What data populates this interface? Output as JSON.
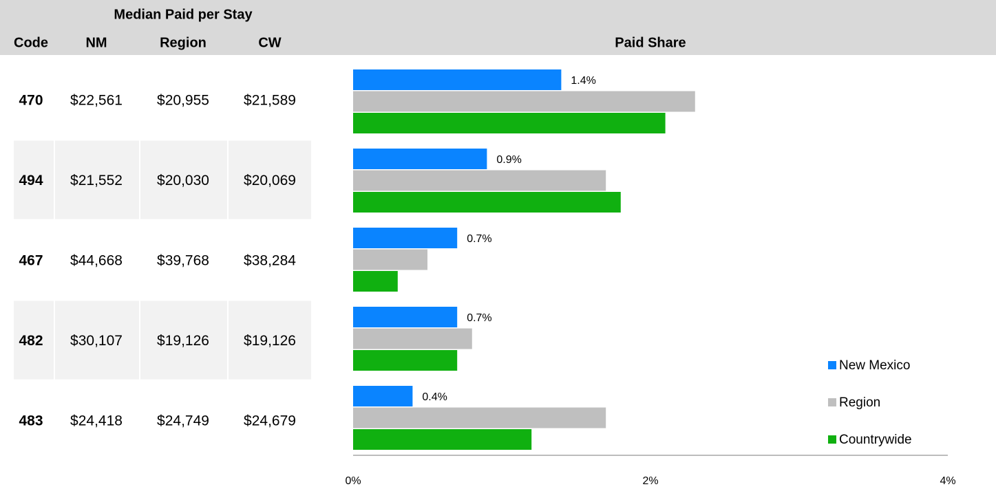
{
  "table": {
    "group_header": "Median Paid per Stay",
    "columns": [
      "Code",
      "NM",
      "Region",
      "CW"
    ],
    "rows": [
      [
        "470",
        "$22,561",
        "$20,955",
        "$21,589"
      ],
      [
        "494",
        "$21,552",
        "$20,030",
        "$20,069"
      ],
      [
        "467",
        "$44,668",
        "$39,768",
        "$38,284"
      ],
      [
        "482",
        "$30,107",
        "$19,126",
        "$19,126"
      ],
      [
        "483",
        "$24,418",
        "$24,749",
        "$24,679"
      ]
    ]
  },
  "chart_data": {
    "type": "barh",
    "title": "Paid Share",
    "series": [
      {
        "name": "New Mexico",
        "color": "#0a84ff",
        "values": [
          1.4,
          0.9,
          0.7,
          0.7,
          0.4
        ],
        "value_labels": [
          "1.4%",
          "0.9%",
          "0.7%",
          "0.7%",
          "0.4%"
        ]
      },
      {
        "name": "Region",
        "color": "#bfbfbf",
        "values": [
          2.3,
          1.7,
          0.5,
          0.8,
          1.7
        ]
      },
      {
        "name": "Countrywide",
        "color": "#10b010",
        "values": [
          2.1,
          1.8,
          0.3,
          0.7,
          1.2
        ]
      }
    ],
    "xlim": [
      0,
      4
    ],
    "xticks": [
      {
        "value": 0,
        "label": "0%"
      },
      {
        "value": 2,
        "label": "2%"
      },
      {
        "value": 4,
        "label": "4%"
      }
    ],
    "legend": "lower right"
  }
}
